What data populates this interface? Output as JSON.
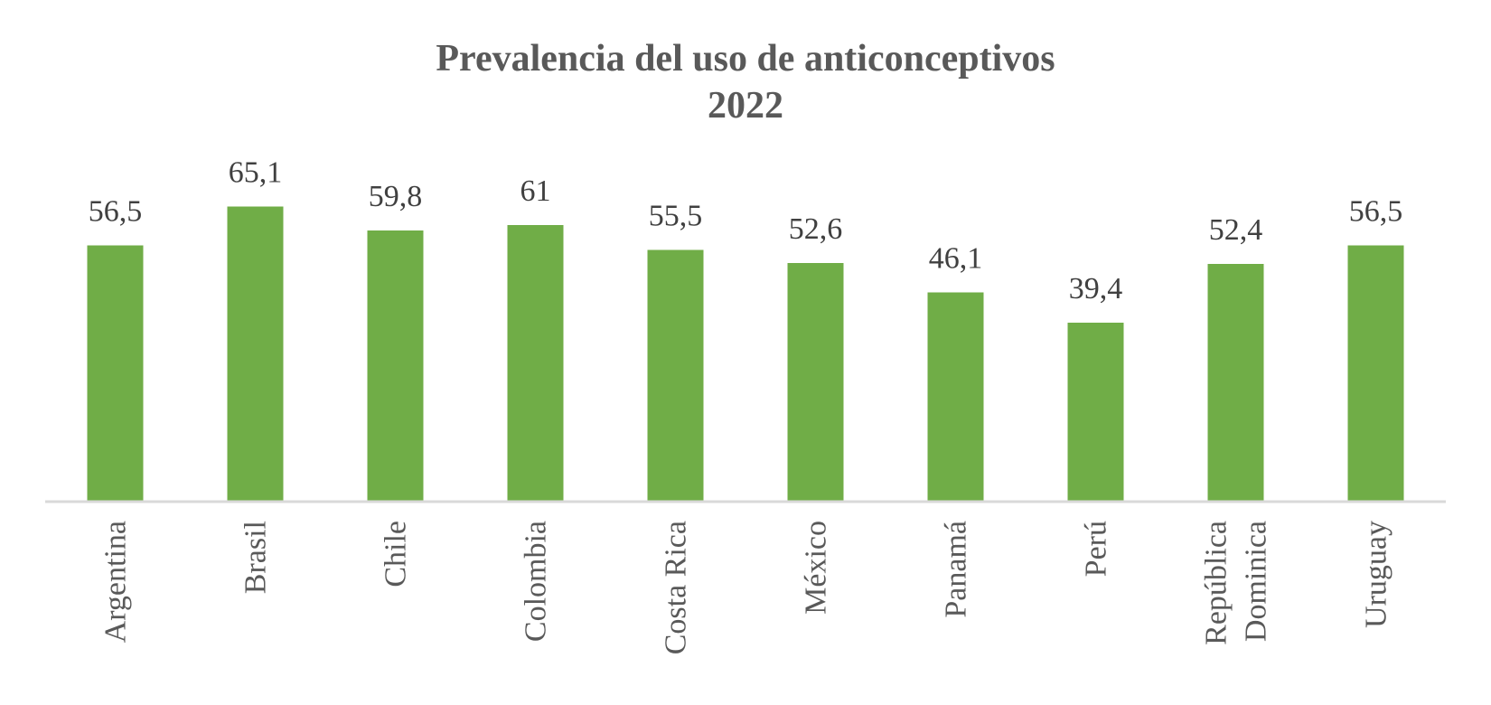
{
  "chart_data": {
    "type": "bar",
    "title": "Prevalencia del uso de anticonceptivos",
    "subtitle": "2022",
    "categories": [
      "Argentina",
      "Brasil",
      "Chile",
      "Colombia",
      "Costa Rica",
      "México",
      "Panamá",
      "Perú",
      "República Dominica",
      "Uruguay"
    ],
    "category_lines": [
      [
        "Argentina"
      ],
      [
        "Brasil"
      ],
      [
        "Chile"
      ],
      [
        "Colombia"
      ],
      [
        "Costa Rica"
      ],
      [
        "México"
      ],
      [
        "Panamá"
      ],
      [
        "Perú"
      ],
      [
        "República",
        "Dominica"
      ],
      [
        "Uruguay"
      ]
    ],
    "values": [
      56.5,
      65.1,
      59.8,
      61,
      55.5,
      52.6,
      46.1,
      39.4,
      52.4,
      56.5
    ],
    "value_labels": [
      "56,5",
      "65,1",
      "59,8",
      "61",
      "55,5",
      "52,6",
      "46,1",
      "39,4",
      "52,4",
      "56,5"
    ],
    "xlabel": "",
    "ylabel": "",
    "ylim": [
      0,
      70
    ],
    "grid": false,
    "legend": "none",
    "colors": {
      "bar": "#70AD47",
      "axis": "#D9D9D9",
      "text": "#595959"
    }
  }
}
